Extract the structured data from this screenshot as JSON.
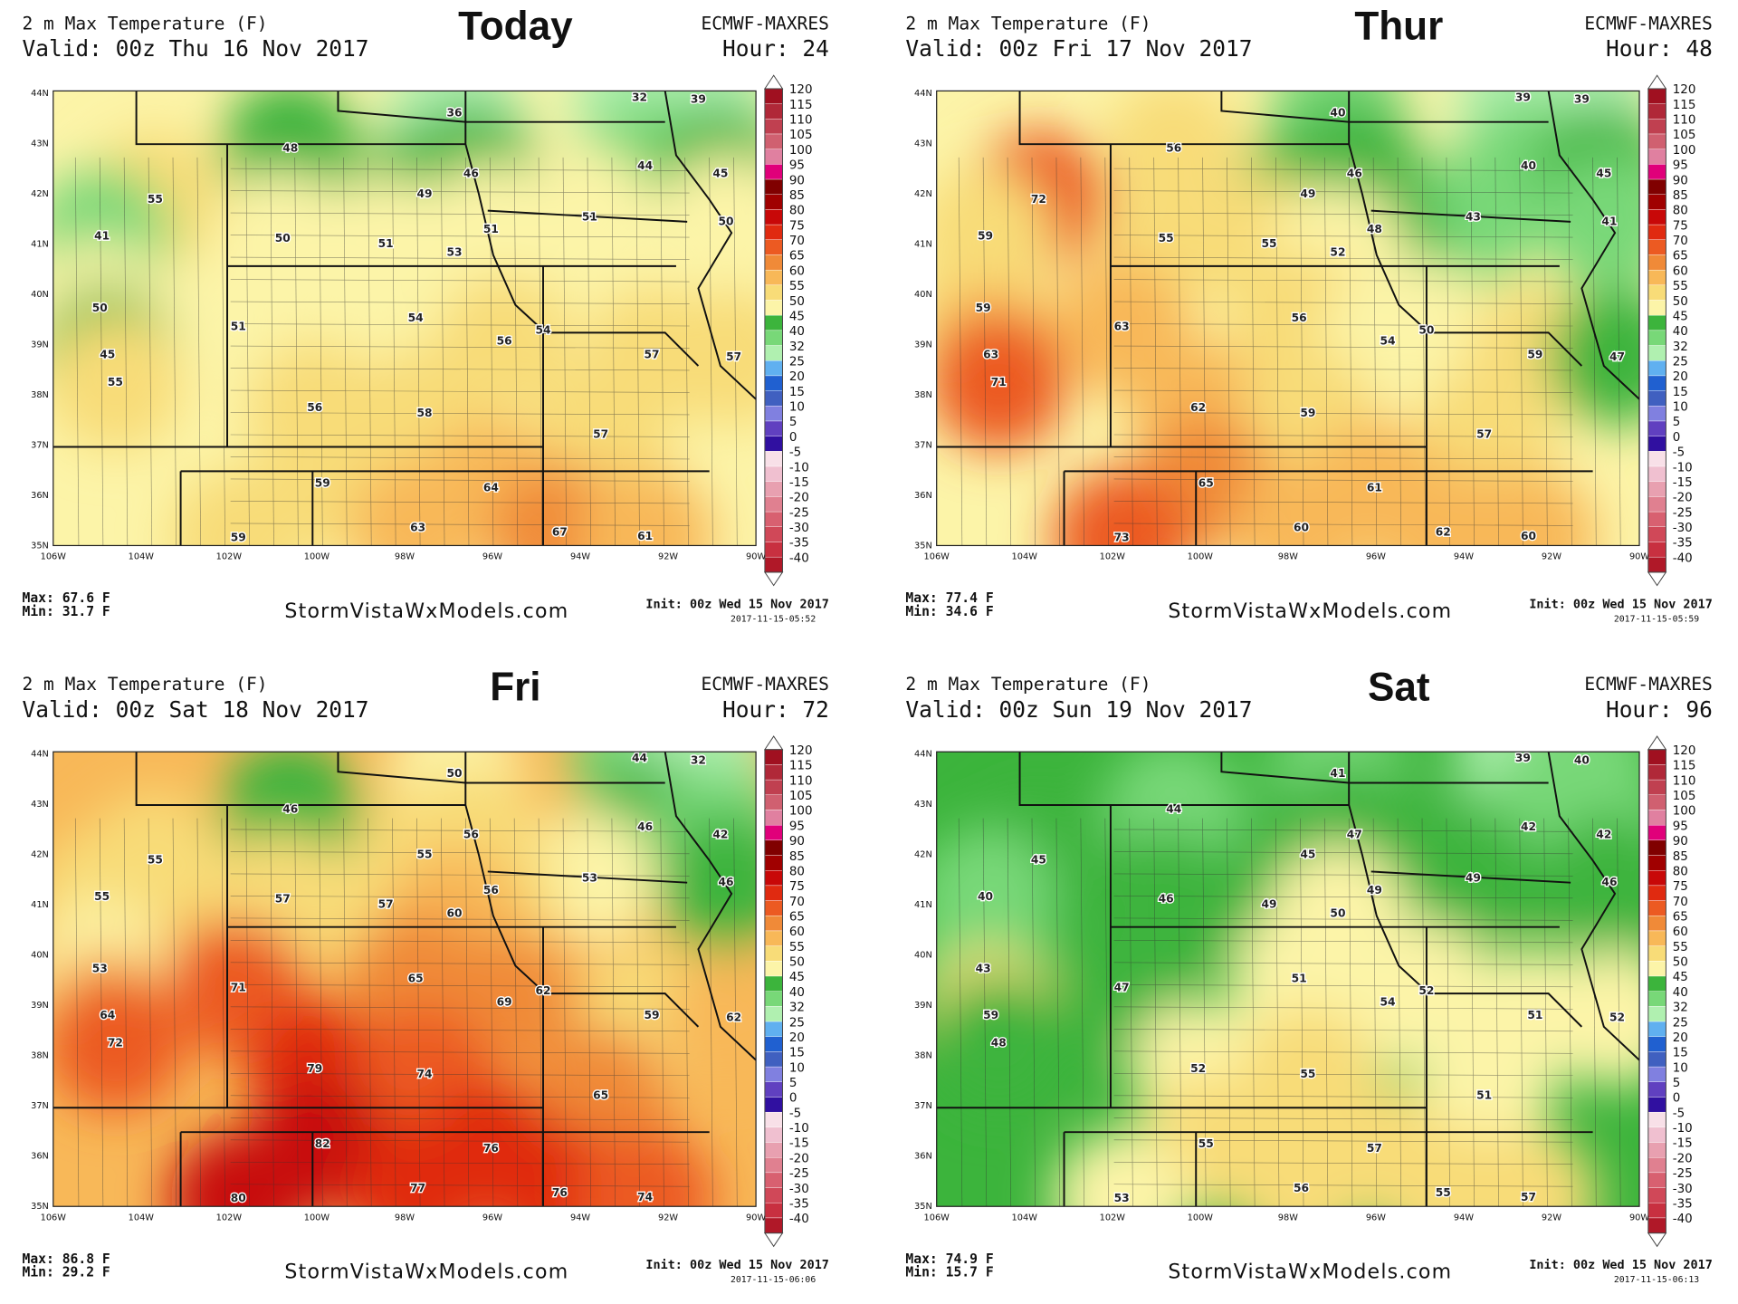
{
  "colorbar": {
    "labels": [
      120,
      115,
      110,
      105,
      100,
      95,
      90,
      85,
      80,
      75,
      70,
      65,
      60,
      55,
      50,
      45,
      40,
      32,
      25,
      20,
      15,
      10,
      5,
      0,
      -5,
      -10,
      -15,
      -20,
      -25,
      -30,
      -35,
      -40
    ],
    "colors": [
      "#a01020",
      "#b02838",
      "#c04050",
      "#d06070",
      "#e080a0",
      "#e0007a",
      "#800000",
      "#a00000",
      "#c80808",
      "#e02a10",
      "#ec5a22",
      "#f08a38",
      "#f8b858",
      "#f8dc78",
      "#fcf4a8",
      "#3cb43c",
      "#78d878",
      "#b0f0b0",
      "#60b0f0",
      "#2060d0",
      "#4060c0",
      "#8080e0",
      "#6040c0",
      "#3010a0",
      "#f8e0e8",
      "#f0c0d0",
      "#e8a0b0",
      "#e08090",
      "#d86070",
      "#d04858",
      "#c83040",
      "#b01828"
    ]
  },
  "lat_labels": [
    "44N",
    "43N",
    "42N",
    "41N",
    "40N",
    "39N",
    "38N",
    "37N",
    "36N",
    "35N"
  ],
  "lon_labels": [
    "106W",
    "104W",
    "102W",
    "100W",
    "98W",
    "96W",
    "94W",
    "92W",
    "90W"
  ],
  "panels": [
    {
      "title": "2 m Max Temperature (F)",
      "valid": "Valid: 00z Thu 16 Nov 2017",
      "day": "Today",
      "model": "ECMWF-MAXRES",
      "hour": "Hour: 24",
      "max": "Max: 67.6 F",
      "min": "Min: 31.7 F",
      "site": "StormVistaWxModels.com",
      "init": "Init: 00z Wed 15 Nov 2017",
      "timestamp": "2017-11-15-05:52",
      "points": [
        32,
        36,
        39,
        48,
        46,
        44,
        45,
        55,
        49,
        51,
        50,
        41,
        50,
        51,
        51,
        53,
        50,
        51,
        54,
        54,
        56,
        57,
        57,
        45,
        55,
        56,
        58,
        57,
        59,
        64,
        63,
        67,
        61,
        59
      ]
    },
    {
      "title": "2 m Max Temperature (F)",
      "valid": "Valid: 00z Fri 17 Nov 2017",
      "day": "Thur",
      "model": "ECMWF-MAXRES",
      "hour": "Hour: 48",
      "max": "Max: 77.4 F",
      "min": "Min: 34.6 F",
      "site": "StormVistaWxModels.com",
      "init": "Init: 00z Wed 15 Nov 2017",
      "timestamp": "2017-11-15-05:59",
      "points": [
        39,
        40,
        39,
        56,
        46,
        40,
        45,
        72,
        49,
        43,
        41,
        59,
        55,
        55,
        48,
        52,
        59,
        63,
        56,
        50,
        54,
        59,
        47,
        63,
        71,
        62,
        59,
        57,
        65,
        61,
        60,
        62,
        60,
        73
      ]
    },
    {
      "title": "2 m Max Temperature (F)",
      "valid": "Valid: 00z Sat 18 Nov 2017",
      "day": "Fri",
      "model": "ECMWF-MAXRES",
      "hour": "Hour: 72",
      "max": "Max: 86.8 F",
      "min": "Min: 29.2 F",
      "site": "StormVistaWxModels.com",
      "init": "Init: 00z Wed 15 Nov 2017",
      "timestamp": "2017-11-15-06:06",
      "points": [
        44,
        50,
        32,
        46,
        56,
        46,
        42,
        55,
        55,
        53,
        46,
        55,
        57,
        57,
        56,
        60,
        53,
        71,
        65,
        62,
        69,
        59,
        62,
        64,
        72,
        79,
        74,
        65,
        82,
        76,
        77,
        76,
        74,
        80
      ]
    },
    {
      "title": "2 m Max Temperature (F)",
      "valid": "Valid: 00z Sun 19 Nov 2017",
      "day": "Sat",
      "model": "ECMWF-MAXRES",
      "hour": "Hour: 96",
      "max": "Max: 74.9 F",
      "min": "Min: 15.7 F",
      "site": "StormVistaWxModels.com",
      "init": "Init: 00z Wed 15 Nov 2017",
      "timestamp": "2017-11-15-06:13",
      "points": [
        39,
        41,
        40,
        44,
        47,
        42,
        42,
        45,
        45,
        49,
        46,
        40,
        46,
        49,
        49,
        50,
        43,
        47,
        51,
        52,
        54,
        51,
        52,
        59,
        48,
        52,
        55,
        51,
        55,
        57,
        56,
        55,
        57,
        53
      ]
    }
  ]
}
